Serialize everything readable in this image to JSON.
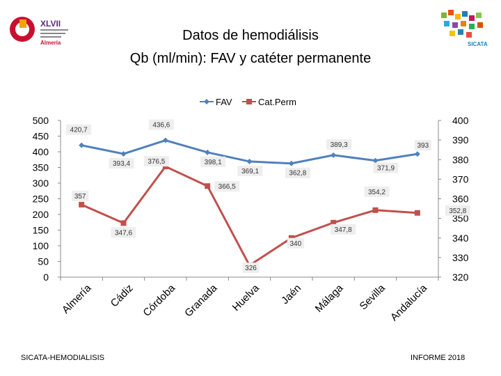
{
  "title_line1": "Datos de hemodiálisis",
  "title_line2": "Qb (ml/min): FAV y catéter permanente",
  "footer_left": "SICATA-HEMODIALISIS",
  "footer_right": "INFORME 2018",
  "logo_left_text": [
    "XLVII",
    "Almería"
  ],
  "logo_right_text": "SICATA",
  "colors": {
    "fav": "#4F81BD",
    "catperm": "#C0504D",
    "grid": "#bfbfbf"
  },
  "chart_data": {
    "type": "line",
    "title": "",
    "categories": [
      "Almería",
      "Cádiz",
      "Córdoba",
      "Granada",
      "Huelva",
      "Jaén",
      "Málaga",
      "Sevilla",
      "Andalucía"
    ],
    "series": [
      {
        "name": "FAV",
        "axis": "left",
        "values": [
          420.7,
          393.4,
          436.6,
          398.1,
          369.1,
          362.8,
          389.3,
          371.9,
          393
        ]
      },
      {
        "name": "Cat.Perm",
        "axis": "right",
        "values": [
          357,
          347.6,
          376.5,
          366.5,
          326,
          340,
          347.8,
          354.2,
          352.8
        ]
      }
    ],
    "y_left": {
      "min": 0,
      "max": 500,
      "ticks": [
        0,
        50,
        100,
        150,
        200,
        250,
        300,
        350,
        400,
        450,
        500
      ]
    },
    "y_right": {
      "min": 320,
      "max": 400,
      "ticks": [
        320,
        330,
        340,
        350,
        360,
        370,
        380,
        390,
        400
      ]
    },
    "legend": "top-center",
    "grid": false,
    "data_labels": {
      "FAV": [
        "420,7",
        "393,4",
        "436,6",
        "398,1",
        "369,1",
        "362,8",
        "389,3",
        "371,9",
        "393"
      ],
      "Cat.Perm": [
        "357",
        "347,6",
        "376,5",
        "366,5",
        "326",
        "340",
        "347,8",
        "354,2",
        "352,8"
      ]
    }
  }
}
